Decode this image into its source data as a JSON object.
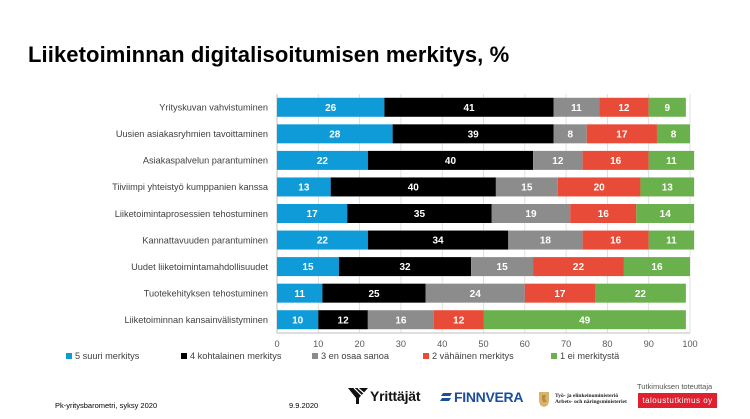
{
  "title": "Liiketoiminnan digitalisoitumisen merkitys, %",
  "chart_data": {
    "type": "bar",
    "orientation": "horizontal",
    "stacked": true,
    "title": "Liiketoiminnan digitalisoitumisen merkitys, %",
    "xlabel": "",
    "ylabel": "",
    "xlim": [
      0,
      100
    ],
    "xticks": [
      0,
      10,
      20,
      30,
      40,
      50,
      60,
      70,
      80,
      90,
      100
    ],
    "grid": true,
    "legend_position": "bottom",
    "categories": [
      "Yrityskuvan vahvistuminen",
      "Uusien asiakasryhmien tavoittaminen",
      "Asiakaspalvelun parantuminen",
      "Tiiviimpi yhteistyö kumppanien kanssa",
      "Liiketoimintaprosessien tehostuminen",
      "Kannattavuuden parantuminen",
      "Uudet liiketoimintamahdollisuudet",
      "Tuotekehityksen tehostuminen",
      "Liiketoiminnan kansainvälistyminen"
    ],
    "series": [
      {
        "name": "5 suuri merkitys",
        "color": "#0f9bd7",
        "values": [
          26,
          28,
          22,
          13,
          17,
          22,
          15,
          11,
          10
        ]
      },
      {
        "name": "4 kohtalainen merkitys",
        "color": "#000000",
        "values": [
          41,
          39,
          40,
          40,
          35,
          34,
          32,
          25,
          12
        ]
      },
      {
        "name": "3 en osaa sanoa",
        "color": "#8c8c8c",
        "values": [
          11,
          8,
          12,
          15,
          19,
          18,
          15,
          24,
          16
        ]
      },
      {
        "name": "2 vähäinen merkitys",
        "color": "#e84b37",
        "values": [
          12,
          17,
          16,
          20,
          16,
          16,
          22,
          17,
          12
        ]
      },
      {
        "name": "1 ei merkitystä",
        "color": "#6ab04c",
        "values": [
          9,
          8,
          11,
          13,
          14,
          11,
          16,
          22,
          49
        ]
      }
    ]
  },
  "footer": {
    "source": "Pk-yritysbarometri, syksy 2020",
    "date": "9.9.2020",
    "logos": {
      "yrittajat": "Yrittäjät",
      "finnvera": "FINNVERA",
      "tem_line1": "Työ- ja elinkeinoministeriö",
      "tem_line2": "Arbets- och näringsministeriet"
    },
    "credit_label": "Tutkimuksen toteuttaja",
    "credit_badge": "taloustutkimus oy"
  }
}
